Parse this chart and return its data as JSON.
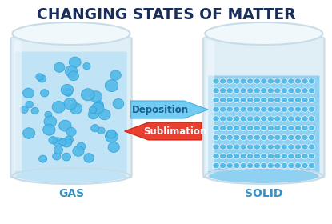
{
  "title": "CHANGING STATES OF MATTER",
  "title_color": "#1a2e5a",
  "title_fontsize": 13.5,
  "background_color": "#ffffff",
  "gas_label": "GAS",
  "solid_label": "SOLID",
  "label_color": "#3a8fc4",
  "label_fontsize": 10,
  "deposition_text": "Deposition",
  "sublimation_text": "Sublimation",
  "deposition_arrow_color": "#70ccf0",
  "sublimation_arrow_color": "#e84030",
  "deposition_text_color": "#1a5a90",
  "sublimation_text_color": "#ffffff",
  "container_glass_color": "#e0eef5",
  "container_edge_color": "#c8dce8",
  "container_glass_shine": "#f0f8fc",
  "gas_fill_color": "#c0e4f5",
  "gas_bubble_color": "#50b8e8",
  "gas_bubble_edge": "#30a0d8",
  "solid_fill_color": "#90d0f0",
  "solid_dot_color": "#50b8e8",
  "solid_upper_color": "#ddeef8"
}
